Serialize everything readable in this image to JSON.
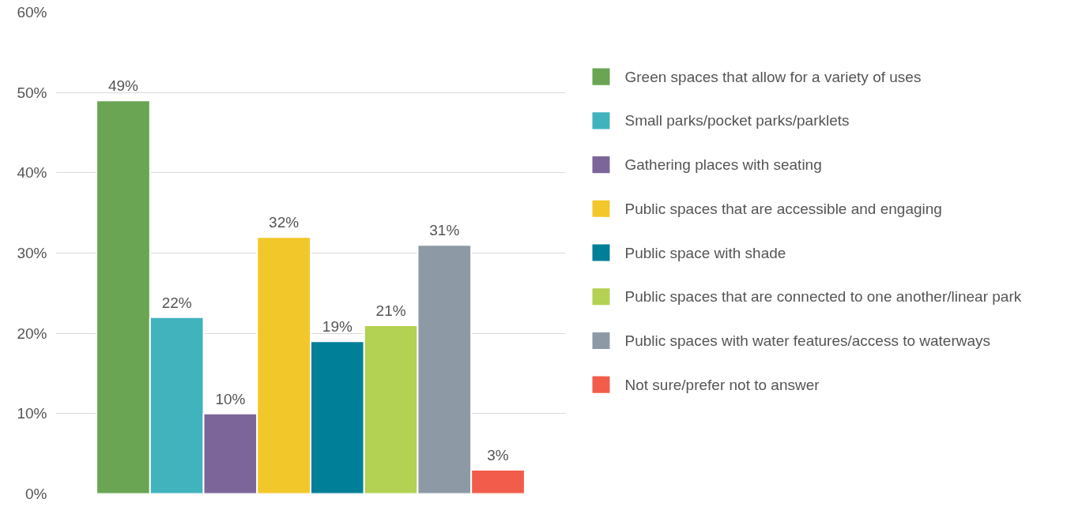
{
  "chart_data": {
    "type": "bar",
    "categories": [
      null
    ],
    "series": [
      {
        "name": "Green spaces that allow for a variety of uses",
        "color": "#69a553",
        "values": [
          49
        ],
        "value_labels": [
          "49%"
        ]
      },
      {
        "name": "Small parks/pocket parks/parklets",
        "color": "#41b3bd",
        "values": [
          22
        ],
        "value_labels": [
          "22%"
        ]
      },
      {
        "name": "Gathering places with seating",
        "color": "#7c6699",
        "values": [
          10
        ],
        "value_labels": [
          "10%"
        ]
      },
      {
        "name": "Public spaces that are accessible and engaging",
        "color": "#f2c72a",
        "values": [
          32
        ],
        "value_labels": [
          "32%"
        ]
      },
      {
        "name": "Public space with shade",
        "color": "#007f99",
        "values": [
          19
        ],
        "value_labels": [
          "19%"
        ]
      },
      {
        "name": "Public spaces that are connected to one another/linear park",
        "color": "#b3d152",
        "values": [
          21
        ],
        "value_labels": [
          "21%"
        ]
      },
      {
        "name": "Public spaces with water features/access to waterways",
        "color": "#8d9aa6",
        "values": [
          31
        ],
        "value_labels": [
          "31%"
        ]
      },
      {
        "name": "Not sure/prefer not to answer",
        "color": "#f25c4a",
        "values": [
          3
        ],
        "value_labels": [
          "3%"
        ]
      }
    ],
    "ylim": [
      0,
      60
    ],
    "yticks": [
      {
        "value": 0,
        "label": "0%"
      },
      {
        "value": 10,
        "label": "10%"
      },
      {
        "value": 20,
        "label": "20%"
      },
      {
        "value": 30,
        "label": "30%"
      },
      {
        "value": 40,
        "label": "40%"
      },
      {
        "value": 50,
        "label": "50%"
      },
      {
        "value": 60,
        "label": "60%"
      }
    ],
    "grid": "y",
    "legend": "right"
  }
}
